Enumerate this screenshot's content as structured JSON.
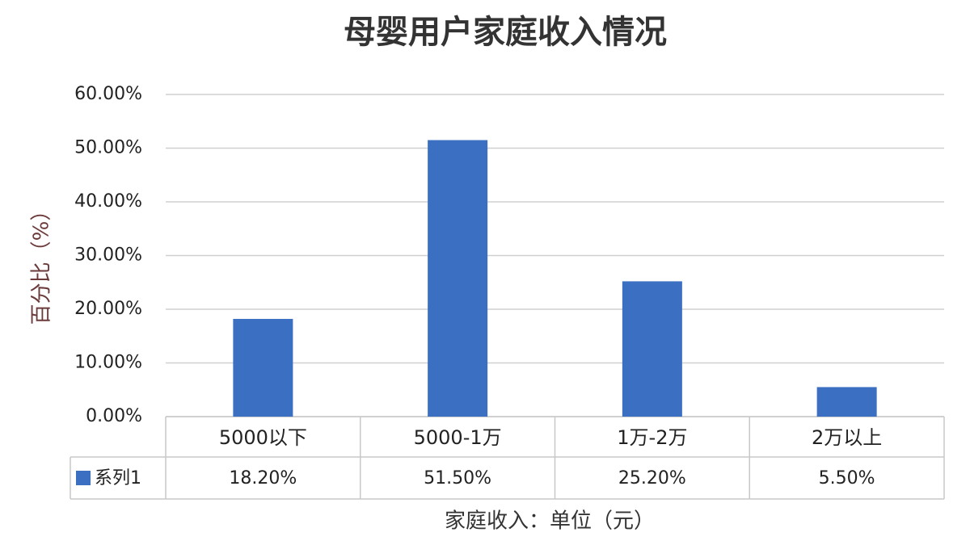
{
  "chart_data": {
    "type": "bar",
    "title": "母婴用户家庭收入情况",
    "ylabel": "百分比（%）",
    "xlabel": "家庭收入：单位（元）",
    "categories": [
      "5000以下",
      "5000-1万",
      "1万-2万",
      "2万以上"
    ],
    "series": [
      {
        "name": "系列1",
        "color": "#3b6fc2",
        "values": [
          18.2,
          51.5,
          25.2,
          5.5
        ],
        "value_labels": [
          "18.20%",
          "51.50%",
          "25.20%",
          "5.50%"
        ]
      }
    ],
    "ylim": [
      0,
      60
    ],
    "yticks": [
      {
        "value": 0,
        "label": "0.00%"
      },
      {
        "value": 10,
        "label": "10.00%"
      },
      {
        "value": 20,
        "label": "20.00%"
      },
      {
        "value": 30,
        "label": "30.00%"
      },
      {
        "value": 40,
        "label": "40.00%"
      },
      {
        "value": 50,
        "label": "50.00%"
      },
      {
        "value": 60,
        "label": "60.00%"
      }
    ],
    "grid": true,
    "data_table": true
  }
}
